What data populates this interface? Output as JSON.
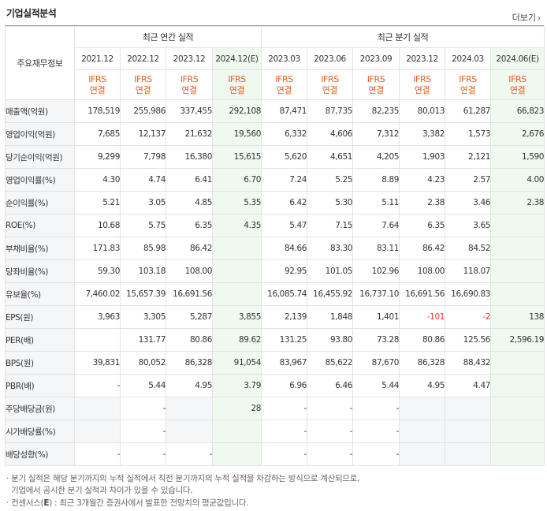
{
  "title": "기업실적분석",
  "more_label": "더보기",
  "header": {
    "row_head": "주요재무정보",
    "annual_group": "최근 연간 실적",
    "quarter_group": "최근 분기 실적",
    "annual_periods": [
      "2021.12",
      "2022.12",
      "2023.12",
      "2024.12(E)"
    ],
    "quarter_periods": [
      "2023.03",
      "2023.06",
      "2023.09",
      "2023.12",
      "2024.03",
      "2024.06(E)"
    ],
    "basis_line1": "IFRS",
    "basis_line2": "연결"
  },
  "rows": [
    {
      "label": "매출액(억원)",
      "annual": [
        "178,519",
        "255,986",
        "337,455",
        "292,108"
      ],
      "quarter": [
        "87,471",
        "87,735",
        "82,235",
        "80,013",
        "61,287",
        "66,823"
      ]
    },
    {
      "label": "영업이익(억원)",
      "annual": [
        "7,685",
        "12,137",
        "21,632",
        "19,560"
      ],
      "quarter": [
        "6,332",
        "4,606",
        "7,312",
        "3,382",
        "1,573",
        "2,676"
      ]
    },
    {
      "label": "당기순이익(억원)",
      "annual": [
        "9,299",
        "7,798",
        "16,380",
        "15,615"
      ],
      "quarter": [
        "5,620",
        "4,651",
        "4,205",
        "1,903",
        "2,121",
        "1,590"
      ]
    },
    {
      "label": "영업이익률(%)",
      "annual": [
        "4.30",
        "4.74",
        "6.41",
        "6.70"
      ],
      "quarter": [
        "7.24",
        "5.25",
        "8.89",
        "4.23",
        "2.57",
        "4.00"
      ]
    },
    {
      "label": "순이익률(%)",
      "annual": [
        "5.21",
        "3.05",
        "4.85",
        "5.35"
      ],
      "quarter": [
        "6.42",
        "5.30",
        "5.11",
        "2.38",
        "3.46",
        "2.38"
      ]
    },
    {
      "label": "ROE(%)",
      "annual": [
        "10.68",
        "5.75",
        "6.35",
        "4.35"
      ],
      "quarter": [
        "5.47",
        "7.15",
        "7.64",
        "6.35",
        "3.65",
        ""
      ]
    },
    {
      "label": "부채비율(%)",
      "annual": [
        "171.83",
        "85.98",
        "86.42",
        ""
      ],
      "quarter": [
        "84.66",
        "83.30",
        "83.11",
        "86.42",
        "84.52",
        ""
      ]
    },
    {
      "label": "당좌비율(%)",
      "annual": [
        "59.30",
        "103.18",
        "108.00",
        ""
      ],
      "quarter": [
        "92.95",
        "101.05",
        "102.96",
        "108.00",
        "118.07",
        ""
      ]
    },
    {
      "label": "유보율(%)",
      "annual": [
        "7,460.02",
        "15,657.39",
        "16,691.56",
        ""
      ],
      "quarter": [
        "16,085.74",
        "16,455.92",
        "16,737.10",
        "16,691.56",
        "16,690.83",
        ""
      ]
    },
    {
      "label": "EPS(원)",
      "annual": [
        "3,963",
        "3,305",
        "5,287",
        "3,855"
      ],
      "quarter": [
        "2,139",
        "1,848",
        "1,401",
        "-101",
        "-2",
        "138"
      ]
    },
    {
      "label": "PER(배)",
      "annual": [
        "",
        "131.77",
        "80.86",
        "89.62"
      ],
      "quarter": [
        "131.25",
        "93.80",
        "73.28",
        "80.86",
        "125.56",
        "2,596.19"
      ]
    },
    {
      "label": "BPS(원)",
      "annual": [
        "39,831",
        "80,052",
        "86,328",
        "91,054"
      ],
      "quarter": [
        "83,967",
        "85,622",
        "87,670",
        "86,328",
        "88,432",
        ""
      ]
    },
    {
      "label": "PBR(배)",
      "annual": [
        "-",
        "5.44",
        "4.95",
        "3.79"
      ],
      "quarter": [
        "6.96",
        "6.46",
        "5.44",
        "4.95",
        "4.47",
        ""
      ]
    },
    {
      "label": "주당배당금(원)",
      "annual": [
        "",
        "-",
        "",
        "28"
      ],
      "quarter": [
        "-",
        "-",
        "-",
        "",
        "",
        ""
      ]
    },
    {
      "label": "시가배당률(%)",
      "annual": [
        "",
        "-",
        "",
        ""
      ],
      "quarter": [
        "-",
        "-",
        "-",
        "",
        "",
        ""
      ]
    },
    {
      "label": "배당성향(%)",
      "annual": [
        "-",
        "-",
        "-",
        ""
      ],
      "quarter": [
        "-",
        "-",
        "-",
        "",
        "",
        ""
      ]
    }
  ],
  "notes": {
    "note1_line1": "분기 실적은 해당 분기까지의 누적 실적에서 직전 분기까지의 누적 실적을 차감하는 방식으로 계산되므로,",
    "note1_line2": "기업에서 공시한 분기 실적과 차이가 있을 수 있습니다.",
    "note2_prefix": "컨센서스(",
    "note2_e": "E",
    "note2_suffix": ") : 최근 3개월간 증권사에서 발표한 전망치의 평균값입니다."
  },
  "colors": {
    "ifrs": "#e35d1a",
    "negative": "#e03c2a",
    "estimate_bg": "#eff9ef",
    "label_bg": "#f5f6f8"
  }
}
